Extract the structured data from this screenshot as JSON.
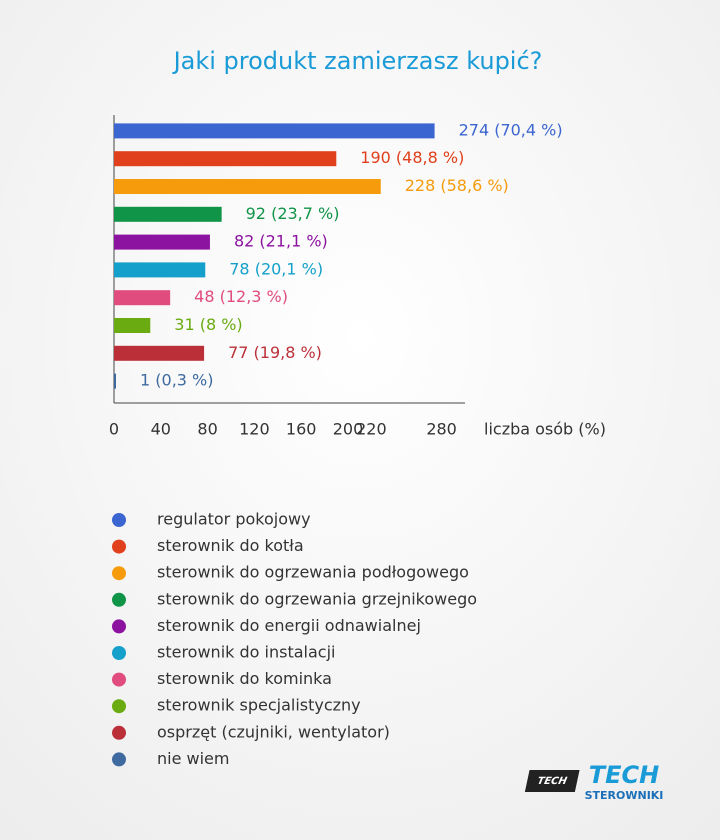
{
  "chart_data": {
    "type": "hbar",
    "title": "Jaki produkt zamierzasz kupić?",
    "x_label": "liczba osób (%)",
    "categories": [
      "regulator pokojowy",
      "sterownik do kotła",
      "sterownik do ogrzewania podłogowego",
      "sterownik do ogrzewania grzejnikowego",
      "sterownik do energii odnawialnej",
      "sterownik do instalacji",
      "sterownik do kominka",
      "sterownik specjalistyczny",
      "osprzęt (czujniki, wentylator)",
      "nie wiem"
    ],
    "values": [
      274,
      190,
      228,
      92,
      82,
      78,
      48,
      31,
      77,
      1
    ],
    "value_labels": [
      "274 (70,4 %)",
      "190 (48,8 %)",
      "228 (58,6 %)",
      "92 (23,7 %)",
      "82 (21,1 %)",
      "78 (20,1 %)",
      "48 (12,3 %)",
      "31 (8 %)",
      "77 (19,8 %)",
      "1 (0,3 %)"
    ],
    "colors": [
      "#3b66d1",
      "#e0401c",
      "#f59b0c",
      "#109448",
      "#8c12a0",
      "#14a0cb",
      "#e04c7e",
      "#6aab12",
      "#bb3038",
      "#3e6aa0"
    ],
    "xlim": [
      0,
      300
    ],
    "xticks": [
      0,
      40,
      80,
      120,
      160,
      200,
      220,
      280
    ],
    "grid": false,
    "legend": "bottom"
  },
  "logo": {
    "title": "TECH",
    "subtitle": "STEROWNIKI"
  }
}
